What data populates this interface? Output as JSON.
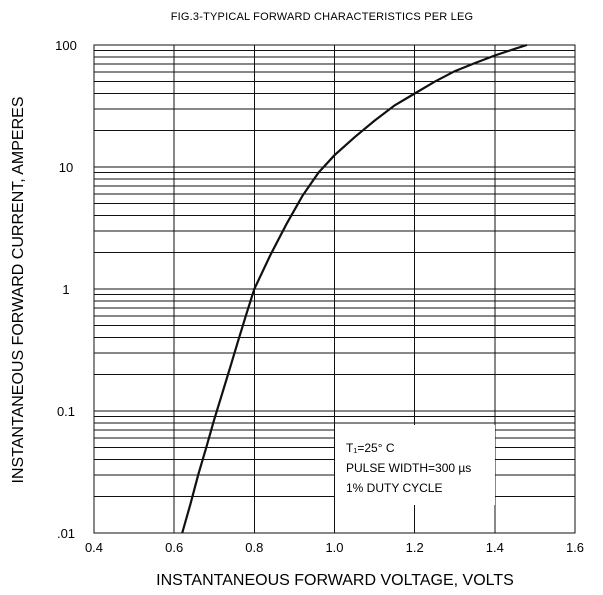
{
  "chart_data": {
    "type": "line",
    "title": "FIG.3-TYPICAL FORWARD CHARACTERISTICS PER LEG",
    "xlabel": "INSTANTANEOUS FORWARD VOLTAGE, VOLTS",
    "ylabel": "INSTANTANEOUS FORWARD CURRENT, AMPERES",
    "xlim": [
      0.4,
      1.6
    ],
    "ylim": [
      0.01,
      100
    ],
    "yscale": "log",
    "grid": true,
    "x_tick_labels": [
      "0.4",
      "0.6",
      "0.8",
      "1.0",
      "1.2",
      "1.4",
      "1.6"
    ],
    "x_tick_values": [
      0.4,
      0.6,
      0.8,
      1.0,
      1.2,
      1.4,
      1.6
    ],
    "y_tick_labels": [
      ".01",
      "0.1",
      "1",
      "10",
      "100"
    ],
    "y_tick_values": [
      0.01,
      0.1,
      1,
      10,
      100
    ],
    "series": [
      {
        "x": [
          0.62,
          0.64,
          0.66,
          0.68,
          0.7,
          0.72,
          0.74,
          0.76,
          0.78,
          0.8,
          0.84,
          0.88,
          0.92,
          0.96,
          1.0,
          1.05,
          1.1,
          1.15,
          1.2,
          1.25,
          1.3,
          1.35,
          1.4,
          1.45,
          1.48
        ],
        "y": [
          0.01,
          0.017,
          0.03,
          0.05,
          0.085,
          0.14,
          0.23,
          0.38,
          0.62,
          1.0,
          1.9,
          3.4,
          5.8,
          9.0,
          12.5,
          17.5,
          24,
          32,
          40,
          50,
          61,
          71,
          82,
          93,
          100
        ]
      }
    ],
    "annotation": {
      "lines": [
        "T₁=25° C",
        "PULSE WIDTH=300 µs",
        "1% DUTY CYCLE"
      ]
    }
  }
}
